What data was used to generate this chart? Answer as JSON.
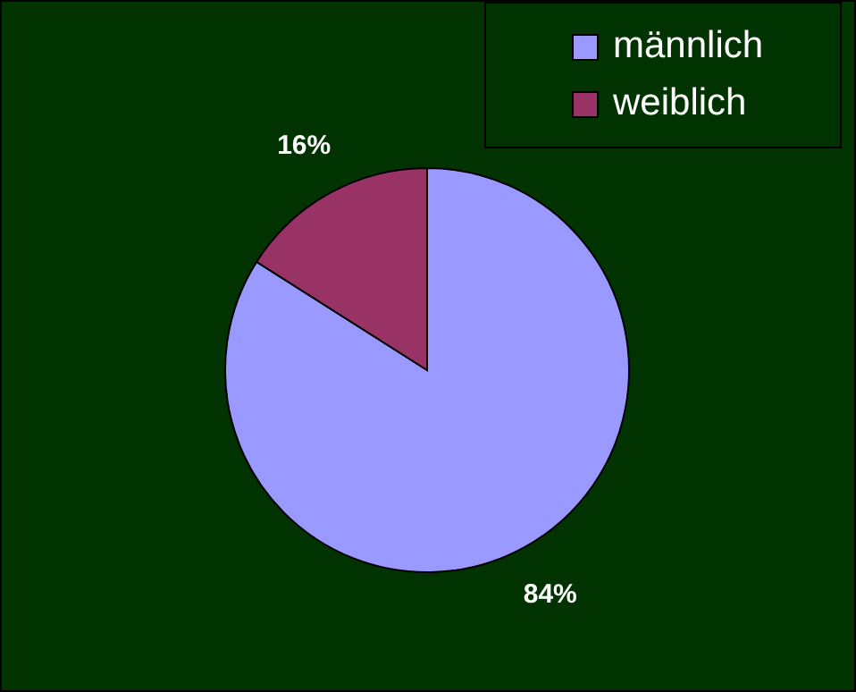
{
  "chart_data": {
    "type": "pie",
    "categories": [
      "männlich",
      "weiblich"
    ],
    "values": [
      84,
      16
    ],
    "colors": [
      "#9999ff",
      "#993366"
    ],
    "value_labels": [
      "84%",
      "16%"
    ],
    "legend": "top right"
  }
}
